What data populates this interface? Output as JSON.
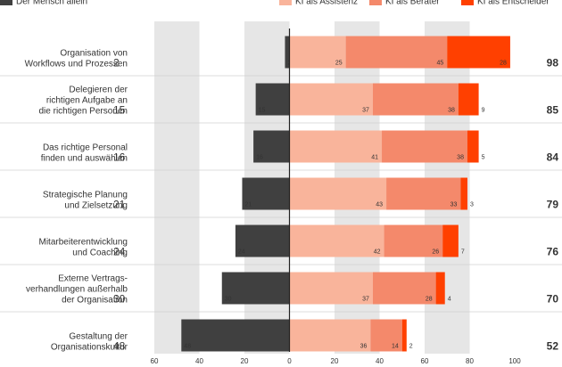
{
  "chart_data": {
    "type": "diverging_bar",
    "categories": [
      "Organisation von\nWorkflows und Prozessen",
      "Delegieren der\nrichtigen Aufgabe an\ndie richtigen Personen",
      "Das richtige Personal\nfinden und auswählen",
      "Strategische Planung\nund Zielsetzung",
      "Mitarbeiterentwicklung\nund Coaching",
      "Externe Vertrags-\nverhandlungen außerhalb\nder Organisation",
      "Gestaltung der\nOrganisationskultur"
    ],
    "series": [
      {
        "name": "Der Mensch allein",
        "color": "#404040",
        "values": [
          2,
          15,
          16,
          21,
          24,
          30,
          48
        ]
      },
      {
        "name": "KI als Assistenz",
        "color": "#f9b49b",
        "values": [
          25,
          37,
          41,
          43,
          42,
          37,
          36
        ]
      },
      {
        "name": "KI als Berater",
        "color": "#f4896b",
        "values": [
          45,
          38,
          38,
          33,
          26,
          28,
          14
        ]
      },
      {
        "name": "KI als Entscheider",
        "color": "#ff4000",
        "values": [
          28,
          9,
          5,
          3,
          7,
          4,
          2
        ]
      }
    ],
    "totals": [
      98,
      85,
      84,
      79,
      76,
      70,
      52
    ],
    "xlim": [
      -60,
      100
    ],
    "xticks": [
      {
        "value": -60,
        "label": "60"
      },
      {
        "value": -40,
        "label": "40"
      },
      {
        "value": -20,
        "label": "20"
      },
      0,
      20,
      40,
      60,
      80,
      100
    ],
    "total_color": "#f05a28"
  }
}
